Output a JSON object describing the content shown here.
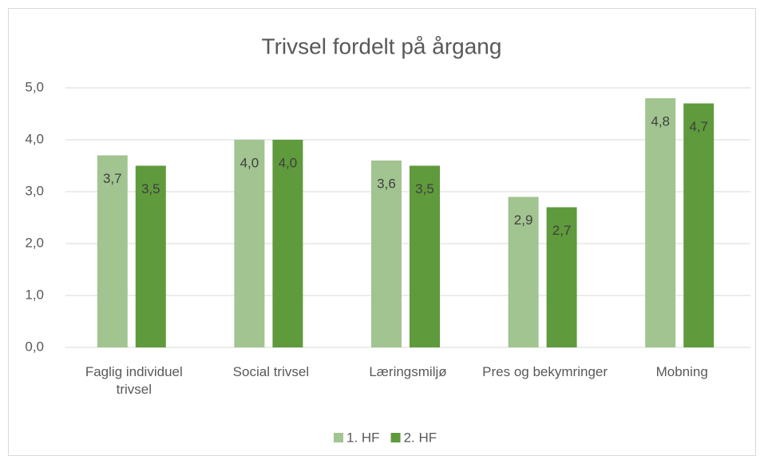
{
  "chart_data": {
    "type": "bar",
    "title": "Trivsel fordelt på årgang",
    "categories": [
      "Faglig individuel trivsel",
      "Social trivsel",
      "Læringsmiljø",
      "Pres og bekymringer",
      "Mobning"
    ],
    "series": [
      {
        "name": "1. HF",
        "color": "#a1c490",
        "values": [
          3.7,
          4.0,
          3.6,
          2.9,
          4.8
        ],
        "value_labels": [
          "3,7",
          "4,0",
          "3,6",
          "2,9",
          "4,8"
        ]
      },
      {
        "name": "2. HF",
        "color": "#5f9a3c",
        "values": [
          3.5,
          4.0,
          3.5,
          2.7,
          4.7
        ],
        "value_labels": [
          "3,5",
          "4,0",
          "3,5",
          "2,7",
          "4,7"
        ]
      }
    ],
    "ylim": [
      0,
      5
    ],
    "yticks": [
      {
        "value": 0,
        "label": "0,0"
      },
      {
        "value": 1,
        "label": "1,0"
      },
      {
        "value": 2,
        "label": "2,0"
      },
      {
        "value": 3,
        "label": "3,0"
      },
      {
        "value": 4,
        "label": "4,0"
      },
      {
        "value": 5,
        "label": "5,0"
      }
    ],
    "grid": true,
    "legend": "bottom"
  }
}
